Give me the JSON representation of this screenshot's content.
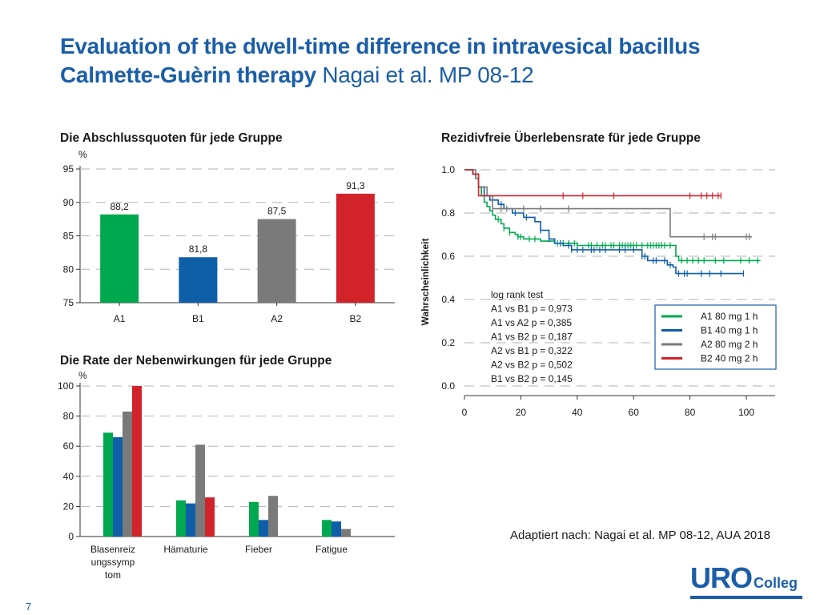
{
  "slide": {
    "title_bold": "Evaluation of the dwell-time difference in intravesical bacillus Calmette-Guèrin therapy",
    "title_plain": " Nagai et al. MP 08-12",
    "source": "Adaptiert nach: Nagai et al. MP 08-12, AUA 2018",
    "page_number": "7",
    "logo_main": "URO",
    "logo_sub": "Colleg"
  },
  "colors": {
    "A1": "#00a94f",
    "B1": "#0f5ea8",
    "A2": "#7a7a7a",
    "B2": "#d2232a",
    "title": "#1b5ea8"
  },
  "chart_data": [
    {
      "type": "bar",
      "title": "Die Abschlussquoten für jede Gruppe",
      "ylabel": "%",
      "categories": [
        "A1",
        "B1",
        "A2",
        "B2"
      ],
      "values": [
        88.2,
        81.8,
        87.5,
        91.3
      ],
      "value_labels": [
        "88,2",
        "81,8",
        "87,5",
        "91,3"
      ],
      "ylim": [
        75,
        95
      ],
      "yticks": [
        75,
        80,
        85,
        90,
        95
      ],
      "grid": true
    },
    {
      "type": "bar",
      "title": "Die Rate der Nebenwirkungen für jede Gruppe",
      "ylabel": "%",
      "categories": [
        "Blasenreiz ungssymp tom",
        "Hämaturie",
        "Fieber",
        "Fatigue"
      ],
      "category_lines": [
        [
          "Blasenreiz",
          "ungssymp",
          "tom"
        ],
        [
          "Hämaturie"
        ],
        [
          "Fieber"
        ],
        [
          "Fatigue"
        ]
      ],
      "series": [
        {
          "values": [
            69,
            24,
            23,
            11
          ]
        },
        {
          "values": [
            66,
            22,
            11,
            10
          ]
        },
        {
          "values": [
            83,
            61,
            27,
            5
          ]
        },
        {
          "values": [
            100,
            26,
            0,
            0
          ]
        }
      ],
      "ylim": [
        0,
        100
      ],
      "yticks": [
        0,
        20,
        40,
        60,
        80,
        100
      ],
      "grid": true
    },
    {
      "type": "line",
      "title": "Rezidivfreie Überlebensrate für jede Gruppe",
      "ylabel": "Wahrscheinlichkeit",
      "xlim": [
        0,
        110
      ],
      "ylim": [
        0,
        1.0
      ],
      "xticks": [
        0,
        20,
        40,
        60,
        80,
        100
      ],
      "yticks": [
        "0.0",
        "0.2",
        "0.4",
        "0.6",
        "0.8",
        "1.0"
      ],
      "yticks_values": [
        0,
        0.2,
        0.4,
        0.6,
        0.8,
        1.0
      ],
      "grid": true,
      "annotation_lines": [
        "log rank test",
        "A1 vs B1 p = 0,973",
        "A1 vs A2 p = 0,385",
        "A1 vs B2 p = 0,187",
        "A2 vs B1 p = 0,322",
        "A2 vs B2 p = 0,502",
        "B1 vs B2 p = 0,145"
      ],
      "legend": [
        "A1 80 mg 1 h",
        "B1 40 mg 1 h",
        "A2 80 mg 2 h",
        "B2 40 mg 2 h"
      ],
      "legend_position": "bottom-right",
      "series": [
        {
          "name": "A1 80 mg 1 h",
          "steps": [
            [
              0,
              1.0
            ],
            [
              3,
              0.98
            ],
            [
              5,
              0.92
            ],
            [
              6,
              0.88
            ],
            [
              7,
              0.85
            ],
            [
              8,
              0.83
            ],
            [
              9,
              0.81
            ],
            [
              10,
              0.79
            ],
            [
              11,
              0.77
            ],
            [
              13,
              0.75
            ],
            [
              14,
              0.73
            ],
            [
              16,
              0.71
            ],
            [
              18,
              0.7
            ],
            [
              19,
              0.69
            ],
            [
              21,
              0.68
            ],
            [
              27,
              0.67
            ],
            [
              32,
              0.66
            ],
            [
              40,
              0.65
            ],
            [
              75,
              0.6
            ],
            [
              76,
              0.58
            ],
            [
              105,
              0.58
            ]
          ],
          "censored": [
            12,
            14,
            16,
            19,
            20,
            23,
            25,
            33,
            35,
            37,
            39,
            40,
            44,
            45,
            47,
            49,
            50,
            52,
            53,
            55,
            56,
            57,
            58,
            59,
            60,
            61,
            63,
            65,
            66,
            67,
            68,
            69,
            70,
            71,
            73,
            77,
            79,
            81,
            83,
            85,
            89,
            92,
            98,
            101,
            104
          ]
        },
        {
          "name": "B1 40 mg 1 h",
          "steps": [
            [
              0,
              1.0
            ],
            [
              3,
              0.98
            ],
            [
              4,
              0.96
            ],
            [
              5,
              0.92
            ],
            [
              7,
              0.88
            ],
            [
              9,
              0.86
            ],
            [
              12,
              0.84
            ],
            [
              14,
              0.82
            ],
            [
              17,
              0.8
            ],
            [
              21,
              0.78
            ],
            [
              25,
              0.76
            ],
            [
              27,
              0.72
            ],
            [
              30,
              0.68
            ],
            [
              32,
              0.66
            ],
            [
              35,
              0.65
            ],
            [
              38,
              0.63
            ],
            [
              63,
              0.6
            ],
            [
              65,
              0.58
            ],
            [
              72,
              0.56
            ],
            [
              74,
              0.55
            ],
            [
              75,
              0.52
            ],
            [
              99,
              0.52
            ]
          ],
          "censored": [
            13,
            18,
            22,
            27,
            30,
            34,
            37,
            38,
            40,
            42,
            45,
            46,
            48,
            50,
            55,
            57,
            60,
            63,
            64,
            67,
            68,
            71,
            73,
            76,
            78,
            79,
            84,
            87,
            91,
            99
          ]
        },
        {
          "name": "A2 80 mg 2 h",
          "steps": [
            [
              0,
              1.0
            ],
            [
              4,
              0.96
            ],
            [
              5,
              0.92
            ],
            [
              8,
              0.88
            ],
            [
              10,
              0.82
            ],
            [
              72,
              0.82
            ],
            [
              73,
              0.69
            ],
            [
              102,
              0.69
            ]
          ],
          "censored": [
            10,
            13,
            15,
            21,
            27,
            37,
            85,
            88,
            89,
            100,
            101
          ]
        },
        {
          "name": "B2 40 mg 2 h",
          "steps": [
            [
              0,
              1.0
            ],
            [
              3,
              0.98
            ],
            [
              5,
              0.88
            ],
            [
              91,
              0.88
            ]
          ],
          "censored": [
            35,
            42,
            53,
            80,
            84,
            86,
            88,
            90,
            91
          ]
        }
      ]
    }
  ]
}
